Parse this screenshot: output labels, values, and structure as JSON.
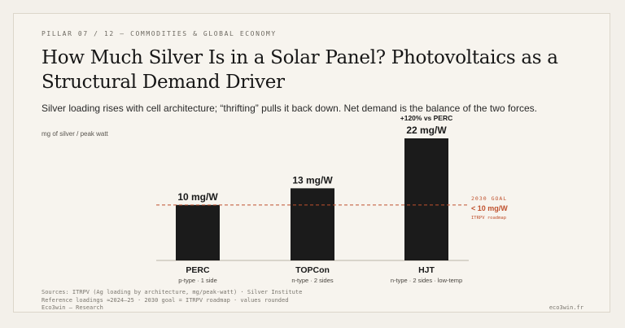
{
  "kicker": "PILLAR 07 / 12 — COMMODITIES & GLOBAL ECONOMY",
  "title": "How Much Silver Is in a Solar Panel? Photovoltaics as a Structural Demand Driver",
  "subtitle": "Silver loading rises with cell architecture; “thrifting” pulls it back down. Net demand is the balance of the two forces.",
  "footer": {
    "sources": "Sources: ITRPV (Ag loading by architecture, mg/peak-watt) · Silver Institute",
    "note": "Reference loadings ≈2024–25 · 2030 goal = ITRPV roadmap · values rounded",
    "brand": "Eco3win — Research",
    "site": "eco3win.fr"
  },
  "colors": {
    "bar": "#1b1b1b",
    "goal": "#c0522f",
    "text": "#1a1a1a"
  },
  "chart_data": {
    "type": "bar",
    "ylabel": "mg of silver / peak watt",
    "ylim": [
      0,
      25
    ],
    "categories": [
      "PERC",
      "TOPCon",
      "HJT"
    ],
    "sublabels": [
      "p-type · 1 side",
      "n-type · 2 sides",
      "n-type · 2 sides · low-temp"
    ],
    "values": [
      10,
      13,
      22
    ],
    "value_labels": [
      "10 mg/W",
      "13 mg/W",
      "22 mg/W"
    ],
    "annotations": [
      {
        "category": "HJT",
        "text": "+120% vs PERC"
      }
    ],
    "reference_line": {
      "value": 10,
      "label_top": "2030 GOAL",
      "label_main": "< 10 mg/W",
      "label_sub": "ITRPV roadmap"
    }
  }
}
